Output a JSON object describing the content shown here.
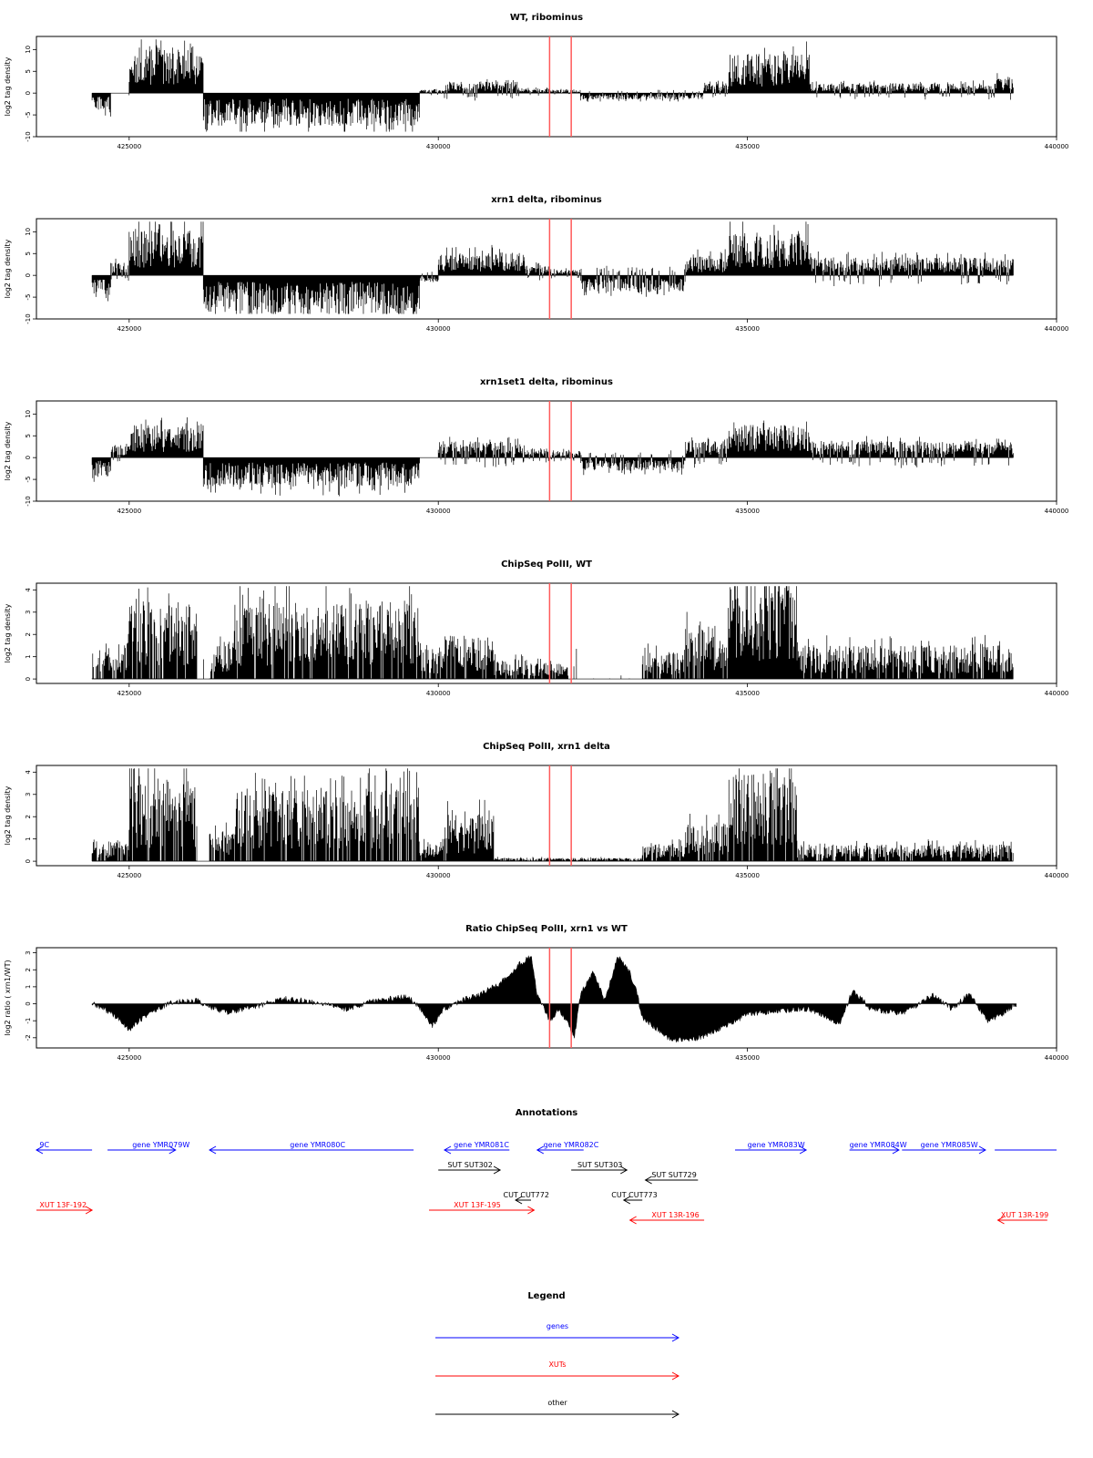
{
  "colors": {
    "genes": "#0000ff",
    "xuts": "#ff0000",
    "other": "#000000",
    "marker": "#ff5a5a",
    "bars": "#000000"
  },
  "chart_data": [
    {
      "type": "bar",
      "title": "WT, ribominus",
      "ylabel": "log2 tag density",
      "xlim": [
        423500,
        440000
      ],
      "ylim": [
        -10,
        13
      ],
      "xticks": [
        425000,
        430000,
        435000,
        440000
      ],
      "yticks": [
        -10,
        -5,
        0,
        5,
        10
      ],
      "markers": [
        431800,
        432150
      ],
      "segments": [
        [
          424400,
          424700,
          -3
        ],
        [
          424700,
          425000,
          0
        ],
        [
          425000,
          426200,
          7
        ],
        [
          426200,
          429700,
          -5
        ],
        [
          429700,
          430100,
          0.5
        ],
        [
          430100,
          431300,
          1.8
        ],
        [
          431300,
          431800,
          0.7
        ],
        [
          431800,
          432300,
          0.5
        ],
        [
          432300,
          434300,
          -1
        ],
        [
          434300,
          434700,
          1.5
        ],
        [
          434700,
          436000,
          6
        ],
        [
          436000,
          439000,
          1.5
        ],
        [
          439000,
          439300,
          2.5
        ]
      ],
      "seed": 11
    },
    {
      "type": "bar",
      "title": "xrn1 delta, ribominus",
      "ylabel": "log2 tag density",
      "xlim": [
        423500,
        440000
      ],
      "ylim": [
        -10,
        13
      ],
      "xticks": [
        425000,
        430000,
        435000,
        440000
      ],
      "yticks": [
        -10,
        -5,
        0,
        5,
        10
      ],
      "markers": [
        431800,
        432150
      ],
      "segments": [
        [
          424400,
          424700,
          -3
        ],
        [
          424700,
          425000,
          2
        ],
        [
          425000,
          426200,
          7
        ],
        [
          426200,
          429700,
          -6
        ],
        [
          429700,
          430000,
          -1
        ],
        [
          430000,
          431400,
          3.5
        ],
        [
          431400,
          431800,
          1.5
        ],
        [
          431800,
          432300,
          1
        ],
        [
          432300,
          434000,
          -2.5
        ],
        [
          434000,
          434700,
          3
        ],
        [
          434700,
          436000,
          6.5
        ],
        [
          436000,
          439000,
          2.8
        ],
        [
          439000,
          439300,
          2.5
        ]
      ],
      "seed": 23
    },
    {
      "type": "bar",
      "title": "xrn1set1 delta, ribominus",
      "ylabel": "log2 tag density",
      "xlim": [
        423500,
        440000
      ],
      "ylim": [
        -10,
        13
      ],
      "xticks": [
        425000,
        430000,
        435000,
        440000
      ],
      "yticks": [
        -10,
        -5,
        0,
        5,
        10
      ],
      "markers": [
        431800,
        432150
      ],
      "segments": [
        [
          424400,
          424700,
          -3
        ],
        [
          424700,
          425000,
          2
        ],
        [
          425000,
          426200,
          5
        ],
        [
          426200,
          429700,
          -4.5
        ],
        [
          429700,
          430000,
          0
        ],
        [
          430000,
          431400,
          2.5
        ],
        [
          431400,
          431800,
          1.5
        ],
        [
          431800,
          432300,
          1
        ],
        [
          432300,
          434000,
          -2
        ],
        [
          434000,
          434700,
          2.5
        ],
        [
          434700,
          436000,
          5
        ],
        [
          436000,
          439000,
          2.5
        ],
        [
          439000,
          439300,
          2.5
        ]
      ],
      "seed": 37
    },
    {
      "type": "bar",
      "title": "ChipSeq PolII, WT",
      "ylabel": "log2 tag density",
      "xlim": [
        423500,
        440000
      ],
      "ylim": [
        -0.2,
        4.3
      ],
      "xticks": [
        425000,
        430000,
        435000,
        440000
      ],
      "yticks": [
        0,
        1,
        2,
        3,
        4
      ],
      "markers": [
        431800,
        432150
      ],
      "segments": [
        [
          424400,
          425000,
          1.1
        ],
        [
          425000,
          426100,
          2.2
        ],
        [
          426100,
          426300,
          0
        ],
        [
          426300,
          426700,
          1.2
        ],
        [
          426700,
          429700,
          2.3
        ],
        [
          429700,
          430100,
          0.9
        ],
        [
          430100,
          430900,
          1.3
        ],
        [
          430900,
          431500,
          0.6
        ],
        [
          431500,
          432100,
          0.5
        ],
        [
          432100,
          433300,
          0
        ],
        [
          433300,
          434000,
          0.8
        ],
        [
          434000,
          434700,
          1.6
        ],
        [
          434700,
          435800,
          3.1
        ],
        [
          435800,
          439300,
          1
        ]
      ],
      "seed": 53
    },
    {
      "type": "bar",
      "title": "ChipSeq PolII, xrn1 delta",
      "ylabel": "log2 tag density",
      "xlim": [
        423500,
        440000
      ],
      "ylim": [
        -0.2,
        4.3
      ],
      "xticks": [
        425000,
        430000,
        435000,
        440000
      ],
      "yticks": [
        0,
        1,
        2,
        3,
        4
      ],
      "markers": [
        431800,
        432150
      ],
      "segments": [
        [
          424400,
          425000,
          0.6
        ],
        [
          425000,
          426100,
          2.4
        ],
        [
          426100,
          426300,
          0
        ],
        [
          426300,
          426700,
          0.9
        ],
        [
          426700,
          429700,
          2.2
        ],
        [
          429700,
          430100,
          0.5
        ],
        [
          430100,
          430900,
          1.4
        ],
        [
          430900,
          433300,
          0.1
        ],
        [
          433300,
          434000,
          0.5
        ],
        [
          434000,
          434700,
          1.1
        ],
        [
          434700,
          435800,
          2.7
        ],
        [
          435800,
          439300,
          0.5
        ]
      ],
      "seed": 71
    },
    {
      "type": "area",
      "title": "Ratio ChipSeq PolII, xrn1 vs WT",
      "ylabel": "log2 ratio ( xrn1/WT)",
      "xlim": [
        423500,
        440000
      ],
      "ylim": [
        -2.6,
        3.3
      ],
      "xticks": [
        425000,
        430000,
        435000,
        440000
      ],
      "yticks": [
        -2,
        -1,
        0,
        1,
        2,
        3
      ],
      "markers": [
        431800,
        432150
      ],
      "curve_points": [
        [
          424400,
          0
        ],
        [
          424700,
          -0.5
        ],
        [
          425000,
          -1.5
        ],
        [
          425300,
          -0.6
        ],
        [
          425700,
          0.1
        ],
        [
          426100,
          0.2
        ],
        [
          426300,
          -0.2
        ],
        [
          426600,
          -0.5
        ],
        [
          427000,
          -0.2
        ],
        [
          427500,
          0.3
        ],
        [
          428000,
          0.1
        ],
        [
          428500,
          -0.3
        ],
        [
          429000,
          0.2
        ],
        [
          429500,
          0.4
        ],
        [
          429700,
          -0.2
        ],
        [
          429900,
          -1.3
        ],
        [
          430100,
          -0.3
        ],
        [
          430400,
          0.2
        ],
        [
          430700,
          0.6
        ],
        [
          431000,
          1.2
        ],
        [
          431300,
          2.3
        ],
        [
          431500,
          2.8
        ],
        [
          431600,
          0.5
        ],
        [
          431800,
          -1
        ],
        [
          431950,
          -0.3
        ],
        [
          432100,
          -1.2
        ],
        [
          432200,
          -2
        ],
        [
          432300,
          0.6
        ],
        [
          432500,
          1.8
        ],
        [
          432700,
          0.2
        ],
        [
          432900,
          2.8
        ],
        [
          433100,
          1.8
        ],
        [
          433200,
          0.8
        ],
        [
          433300,
          -0.8
        ],
        [
          433700,
          -2
        ],
        [
          434000,
          -2.2
        ],
        [
          434300,
          -1.9
        ],
        [
          434700,
          -1.2
        ],
        [
          435000,
          -0.6
        ],
        [
          435500,
          -0.4
        ],
        [
          436000,
          -0.3
        ],
        [
          436500,
          -1.2
        ],
        [
          436700,
          0.8
        ],
        [
          437000,
          -0.3
        ],
        [
          437500,
          -0.6
        ],
        [
          438000,
          0.5
        ],
        [
          438300,
          -0.3
        ],
        [
          438600,
          0.6
        ],
        [
          438900,
          -1.1
        ],
        [
          439200,
          -0.4
        ],
        [
          439350,
          0
        ]
      ],
      "seed": 89
    }
  ],
  "annotations": {
    "title": "Annotations",
    "xlim": [
      423500,
      440000
    ],
    "items": [
      {
        "label": "9C",
        "x1": 423500,
        "x2": 424400,
        "dir": "left",
        "row": 0,
        "kind": "genes",
        "lx": 423550
      },
      {
        "label": "gene YMR079W",
        "x1": 424650,
        "x2": 425750,
        "dir": "right",
        "row": 0,
        "kind": "genes",
        "lx": 425050
      },
      {
        "label": "gene YMR080C",
        "x1": 426300,
        "x2": 429600,
        "dir": "left",
        "row": 0,
        "kind": "genes",
        "lx": 427600
      },
      {
        "label": "gene YMR081C",
        "x1": 430100,
        "x2": 431150,
        "dir": "left",
        "row": 0,
        "kind": "genes",
        "lx": 430250
      },
      {
        "label": "gene YMR082C",
        "x1": 431600,
        "x2": 432350,
        "dir": "left",
        "row": 0,
        "kind": "genes",
        "lx": 431700
      },
      {
        "label": "gene YMR083W",
        "x1": 434800,
        "x2": 435950,
        "dir": "right",
        "row": 0,
        "kind": "genes",
        "lx": 435000
      },
      {
        "label": "gene YMR084W",
        "x1": 436650,
        "x2": 437450,
        "dir": "right",
        "row": 0,
        "kind": "genes",
        "lx": 436650
      },
      {
        "label": "gene YMR085W",
        "x1": 437500,
        "x2": 438850,
        "dir": "right",
        "row": 0,
        "kind": "genes",
        "lx": 437800
      },
      {
        "label": "",
        "x1": 439000,
        "x2": 440000,
        "dir": "none",
        "row": 0,
        "kind": "genes",
        "lx": 439000
      },
      {
        "label": "SUT SUT302",
        "x1": 430000,
        "x2": 431000,
        "dir": "right",
        "row": 1,
        "kind": "other",
        "lx": 430150
      },
      {
        "label": "SUT SUT303",
        "x1": 432150,
        "x2": 433050,
        "dir": "right",
        "row": 1,
        "kind": "other",
        "lx": 432250
      },
      {
        "label": "SUT SUT729",
        "x1": 433350,
        "x2": 434200,
        "dir": "left",
        "row": 1.5,
        "kind": "other",
        "lx": 433450
      },
      {
        "label": "CUT CUT772",
        "x1": 431250,
        "x2": 431500,
        "dir": "left",
        "row": 2.5,
        "kind": "other",
        "lx": 431050
      },
      {
        "label": "CUT CUT773",
        "x1": 433000,
        "x2": 433300,
        "dir": "left",
        "row": 2.5,
        "kind": "other",
        "lx": 432800
      },
      {
        "label": "XUT 13F-192",
        "x1": 423500,
        "x2": 424400,
        "dir": "right",
        "row": 3,
        "kind": "xuts",
        "lx": 423550
      },
      {
        "label": "XUT 13F-195",
        "x1": 429850,
        "x2": 431550,
        "dir": "right",
        "row": 3,
        "kind": "xuts",
        "lx": 430250
      },
      {
        "label": "XUT 13R-196",
        "x1": 433100,
        "x2": 434300,
        "dir": "left",
        "row": 3.5,
        "kind": "xuts",
        "lx": 433450
      },
      {
        "label": "XUT 13R-199",
        "x1": 439050,
        "x2": 439850,
        "dir": "left",
        "row": 3.5,
        "kind": "xuts",
        "lx": 439100
      }
    ]
  },
  "legend": {
    "title": "Legend",
    "items": [
      {
        "label": "genes",
        "kind": "genes"
      },
      {
        "label": "XUTs",
        "kind": "xuts"
      },
      {
        "label": "other",
        "kind": "other"
      }
    ]
  }
}
